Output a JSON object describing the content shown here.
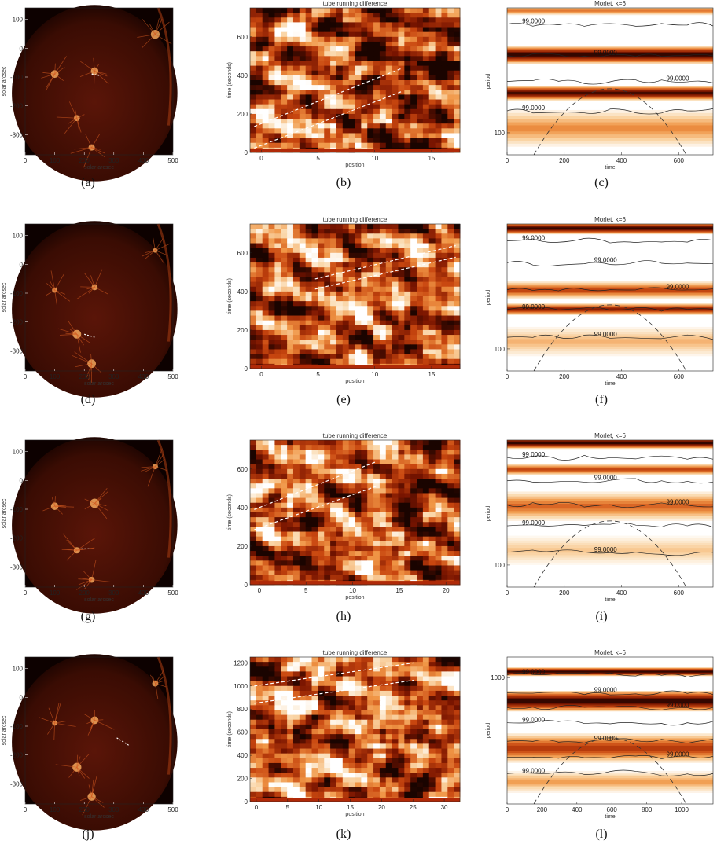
{
  "rows": [
    {
      "sun": {
        "caption": "(a)",
        "xlabel": "solar arcsec",
        "ylabel": "solar arcsec",
        "xticks": [
          "0",
          "100",
          "200",
          "300",
          "400",
          "500"
        ],
        "yticks": [
          "100",
          "0",
          "-100",
          "-200",
          "-300"
        ],
        "x_range": [
          0,
          500
        ],
        "y_range": [
          -370,
          140
        ]
      },
      "td": {
        "caption": "(b)",
        "title": "tube running difference",
        "xlabel": "position",
        "ylabel": "time (seconds)",
        "xticks": [
          "0",
          "5",
          "10",
          "15"
        ],
        "yticks": [
          "600",
          "400",
          "200",
          "0"
        ],
        "x_range": [
          -1,
          17.5
        ],
        "y_range": [
          0,
          750
        ]
      },
      "wav": {
        "caption": "(c)",
        "title": "Morlet, k=6",
        "xlabel": "time",
        "ylabel": "period",
        "xticks": [
          "0",
          "200",
          "400",
          "600"
        ],
        "yticks": [
          "100"
        ],
        "contour_label": "99.0000",
        "contour_count": 4
      }
    },
    {
      "sun": {
        "caption": "(d)",
        "xlabel": "solar arcsec",
        "ylabel": "solar arcsec",
        "xticks": [
          "0",
          "100",
          "200",
          "300",
          "400",
          "500"
        ],
        "yticks": [
          "100",
          "0",
          "-100",
          "-200",
          "-300"
        ],
        "x_range": [
          0,
          500
        ],
        "y_range": [
          -370,
          140
        ]
      },
      "td": {
        "caption": "(e)",
        "title": "tube running difference",
        "xlabel": "position",
        "ylabel": "time (seconds)",
        "xticks": [
          "0",
          "5",
          "10",
          "15"
        ],
        "yticks": [
          "600",
          "400",
          "200",
          "0"
        ],
        "x_range": [
          -1,
          17.5
        ],
        "y_range": [
          0,
          750
        ]
      },
      "wav": {
        "caption": "(f)",
        "title": "Morlet, k=6",
        "xlabel": "time",
        "ylabel": "period",
        "xticks": [
          "0",
          "200",
          "400",
          "600"
        ],
        "yticks": [
          "100"
        ],
        "contour_label": "99.0000",
        "contour_count": 5
      }
    },
    {
      "sun": {
        "caption": "(g)",
        "xlabel": "solar arcsec",
        "ylabel": "solar arcsec",
        "xticks": [
          "0",
          "100",
          "200",
          "300",
          "400",
          "500"
        ],
        "yticks": [
          "100",
          "0",
          "-100",
          "-200",
          "-300"
        ],
        "x_range": [
          0,
          500
        ],
        "y_range": [
          -370,
          140
        ]
      },
      "td": {
        "caption": "(h)",
        "title": "tube running difference",
        "xlabel": "position",
        "ylabel": "time (seconds)",
        "xticks": [
          "0",
          "5",
          "10",
          "15",
          "20"
        ],
        "yticks": [
          "600",
          "400",
          "200",
          "0"
        ],
        "x_range": [
          -1,
          21.5
        ],
        "y_range": [
          0,
          750
        ]
      },
      "wav": {
        "caption": "(i)",
        "title": "Morlet, k=6",
        "xlabel": "time",
        "ylabel": "period",
        "xticks": [
          "0",
          "200",
          "400",
          "600"
        ],
        "yticks": [
          "100"
        ],
        "contour_label": "99.0000",
        "contour_count": 5
      }
    },
    {
      "sun": {
        "caption": "(j)",
        "xlabel": "solar arcsec",
        "ylabel": "solar arcsec",
        "xticks": [
          "0",
          "100",
          "200",
          "300",
          "400",
          "500"
        ],
        "yticks": [
          "100",
          "0",
          "-100",
          "-200",
          "-300"
        ],
        "x_range": [
          0,
          500
        ],
        "y_range": [
          -370,
          140
        ]
      },
      "td": {
        "caption": "(k)",
        "title": "tube running difference",
        "xlabel": "position",
        "ylabel": "time (seconds)",
        "xticks": [
          "0",
          "5",
          "10",
          "15",
          "20",
          "25",
          "30"
        ],
        "yticks": [
          "1200",
          "1000",
          "800",
          "600",
          "400",
          "200",
          "0"
        ],
        "x_range": [
          -1,
          32.5
        ],
        "y_range": [
          0,
          1250
        ]
      },
      "wav": {
        "caption": "(l)",
        "title": "Morlet, k=6",
        "xlabel": "time",
        "ylabel": "period",
        "xticks": [
          "0",
          "200",
          "400",
          "600",
          "800",
          "1000"
        ],
        "yticks": [
          "1000"
        ],
        "contour_label": "99.0000",
        "contour_count": 7
      }
    }
  ],
  "colors": {
    "dark": "#1a0400",
    "mid": "#c0400a",
    "light": "#fbe0c0",
    "white": "#ffffff",
    "contour": "#222222",
    "dashes": "#ffffff"
  }
}
